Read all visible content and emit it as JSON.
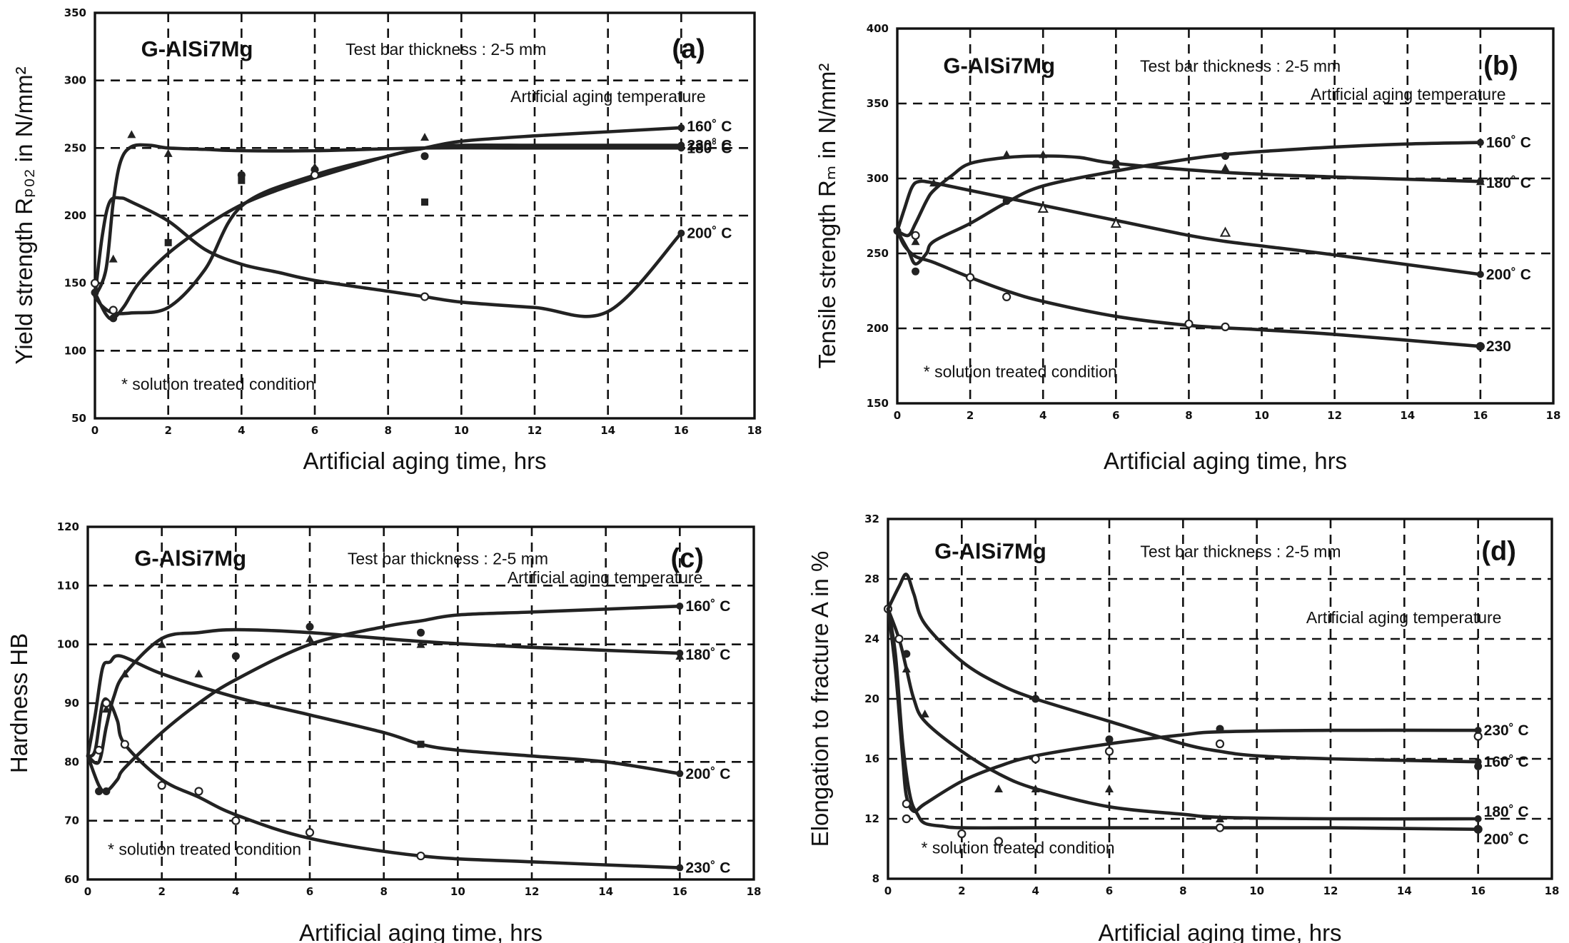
{
  "figure": {
    "x_axis_label": "Artificial aging time, hrs",
    "alloy": "G-AlSi7Mg",
    "test_bar": "Test bar thickness : 2-5 mm",
    "aging_temp_label": "Artificial aging temperature",
    "solution_note": "* solution treated condition"
  },
  "chart_data": [
    {
      "panel": "(a)",
      "type": "line",
      "ylabel": "Yield strength Rₚ₀₂ in N/mm²",
      "xlabel": "Artificial aging time, hrs",
      "xlim": [
        0,
        18
      ],
      "ylim": [
        50,
        350
      ],
      "xticks": [
        "0",
        "2",
        "4",
        "6",
        "8",
        "10",
        "12",
        "14",
        "16",
        "18"
      ],
      "yticks": [
        "50",
        "100",
        "150",
        "200",
        "250",
        "300",
        "350"
      ],
      "grid": true,
      "series": [
        {
          "name": "160˚ C",
          "x": [
            0,
            0.3,
            0.5,
            0.8,
            1.2,
            2,
            3,
            4,
            5,
            6,
            8,
            9,
            10,
            12,
            14,
            16
          ],
          "y": [
            143,
            127,
            124,
            133,
            150,
            172,
            192,
            208,
            219,
            228,
            244,
            250,
            255,
            259,
            262,
            265
          ],
          "markers": {
            "shape": "dot",
            "x": [
              0,
              0.5,
              4,
              6,
              9
            ],
            "y": [
              143,
              124,
              230,
              234,
              244
            ]
          }
        },
        {
          "name": "180˚ C",
          "x": [
            0,
            0.3,
            0.5,
            0.7,
            1,
            1.5,
            2,
            3,
            4,
            6,
            9,
            12,
            16
          ],
          "y": [
            140,
            160,
            210,
            240,
            251,
            252,
            250,
            249,
            248,
            248,
            250,
            250,
            250
          ],
          "markers": {
            "shape": "triangle",
            "x": [
              0.5,
              1,
              2,
              6,
              9
            ],
            "y": [
              168,
              260,
              246,
              236,
              258
            ]
          }
        },
        {
          "name": "200˚ C",
          "x": [
            0,
            0.2,
            0.4,
            0.7,
            1,
            2,
            3,
            4,
            5,
            6,
            8,
            9,
            10,
            12,
            14,
            16
          ],
          "y": [
            140,
            185,
            210,
            213,
            210,
            196,
            175,
            164,
            158,
            152,
            144,
            140,
            136,
            132,
            129,
            187
          ],
          "markers": {
            "shape": "square",
            "x": [
              2,
              4,
              9
            ],
            "y": [
              180,
              226,
              210
            ]
          }
        },
        {
          "name": "230˚ C",
          "x": [
            0,
            0.2,
            0.5,
            1,
            2,
            3,
            4,
            6,
            8,
            9,
            10,
            12,
            14,
            16
          ],
          "y": [
            140,
            133,
            128,
            128,
            132,
            160,
            207,
            230,
            244,
            250,
            252,
            252,
            252,
            252
          ],
          "markers": {
            "shape": "circle",
            "x": [
              0,
              0.5,
              6,
              9
            ],
            "y": [
              150,
              130,
              230,
              140
            ]
          }
        }
      ]
    },
    {
      "panel": "(b)",
      "type": "line",
      "ylabel": "Tensile strength Rₘ in N/mm²",
      "xlabel": "Artificial aging time, hrs",
      "xlim": [
        0,
        18
      ],
      "ylim": [
        150,
        400
      ],
      "xticks": [
        "0",
        "2",
        "4",
        "6",
        "8",
        "10",
        "12",
        "14",
        "16",
        "18"
      ],
      "yticks": [
        "150",
        "200",
        "250",
        "300",
        "350",
        "400"
      ],
      "grid": true,
      "series": [
        {
          "name": "160˚ C",
          "x": [
            0,
            0.3,
            0.5,
            0.8,
            1,
            2,
            3,
            4,
            6,
            8,
            9,
            10,
            12,
            14,
            16
          ],
          "y": [
            265,
            252,
            243,
            250,
            258,
            270,
            284,
            295,
            305,
            313,
            316,
            318,
            321,
            323,
            324
          ],
          "markers": {
            "shape": "dot",
            "x": [
              0,
              0.5,
              3,
              6,
              9
            ],
            "y": [
              265,
              238,
              285,
              310,
              315
            ]
          }
        },
        {
          "name": "180˚ C",
          "x": [
            0,
            0.3,
            0.5,
            0.8,
            1,
            1.5,
            2,
            3,
            4,
            5,
            6,
            9,
            12,
            16
          ],
          "y": [
            265,
            262,
            270,
            285,
            292,
            302,
            310,
            314,
            315,
            314,
            310,
            304,
            301,
            298
          ],
          "markers": {
            "shape": "triangle",
            "x": [
              0.5,
              1,
              3,
              4,
              6,
              9,
              16
            ],
            "y": [
              258,
              297,
              316,
              316,
              309,
              307,
              298
            ]
          }
        },
        {
          "name": "200˚ C",
          "x": [
            0,
            0.2,
            0.4,
            0.6,
            1,
            2,
            4,
            6,
            8,
            9,
            10,
            12,
            16
          ],
          "y": [
            265,
            280,
            294,
            298,
            297,
            292,
            282,
            272,
            262,
            258,
            255,
            249,
            236
          ],
          "markers": {
            "shape": "triangle-open",
            "x": [
              4,
              6,
              9
            ],
            "y": [
              280,
              270,
              264
            ]
          }
        },
        {
          "name": "230",
          "x": [
            0,
            0.2,
            0.5,
            1,
            2,
            3,
            4,
            6,
            8,
            10,
            12,
            16
          ],
          "y": [
            265,
            255,
            248,
            244,
            234,
            225,
            218,
            208,
            202,
            199,
            196,
            188
          ],
          "markers": {
            "shape": "circle",
            "x": [
              0.5,
              2,
              3,
              8,
              9,
              16
            ],
            "y": [
              262,
              234,
              221,
              203,
              201,
              188
            ]
          }
        }
      ]
    },
    {
      "panel": "(c)",
      "type": "line",
      "ylabel": "Hardness HB",
      "xlabel": "Artificial aging time, hrs",
      "xlim": [
        0,
        18
      ],
      "ylim": [
        60,
        120
      ],
      "xticks": [
        "0",
        "2",
        "4",
        "6",
        "8",
        "10",
        "12",
        "14",
        "16",
        "18"
      ],
      "yticks": [
        "60",
        "70",
        "80",
        "90",
        "100",
        "110",
        "120"
      ],
      "grid": true,
      "series": [
        {
          "name": "160˚ C",
          "x": [
            0,
            0.3,
            0.5,
            0.8,
            1,
            2,
            3,
            4,
            6,
            8,
            9,
            10,
            12,
            14,
            16
          ],
          "y": [
            81,
            76,
            75,
            77,
            79,
            85,
            90,
            94,
            100,
            103,
            104,
            105,
            105.5,
            106,
            106.5
          ],
          "markers": {
            "shape": "dot",
            "x": [
              0.3,
              0.5,
              4,
              6,
              9
            ],
            "y": [
              75,
              75,
              98,
              103,
              102
            ]
          }
        },
        {
          "name": "180˚ C",
          "x": [
            0,
            0.3,
            0.5,
            0.7,
            1,
            2,
            3,
            4,
            6,
            9,
            12,
            16
          ],
          "y": [
            81,
            80,
            86,
            91,
            95,
            101,
            102,
            102.5,
            102,
            100.5,
            99.5,
            98.5
          ],
          "markers": {
            "shape": "triangle",
            "x": [
              0.5,
              1,
              2,
              3,
              6,
              9,
              16
            ],
            "y": [
              89,
              95,
              100,
              95,
              101,
              100,
              98
            ]
          }
        },
        {
          "name": "200˚ C",
          "x": [
            0,
            0.2,
            0.4,
            0.6,
            0.9,
            2,
            4,
            6,
            8,
            9,
            10,
            12,
            14,
            16
          ],
          "y": [
            81,
            88,
            96,
            97,
            98,
            95,
            91,
            88,
            85,
            83,
            82,
            81,
            80,
            78
          ],
          "markers": {
            "shape": "square",
            "x": [
              9
            ],
            "y": [
              83
            ]
          }
        },
        {
          "name": "230˚ C",
          "x": [
            0,
            0.2,
            0.4,
            0.6,
            0.8,
            1,
            2,
            3,
            4,
            6,
            9,
            12,
            16
          ],
          "y": [
            81,
            82,
            90,
            90,
            87,
            83,
            77,
            74,
            71,
            67,
            64,
            63,
            62
          ],
          "markers": {
            "shape": "circle",
            "x": [
              0.3,
              0.5,
              1,
              2,
              3,
              4,
              6,
              9
            ],
            "y": [
              82,
              90,
              83,
              76,
              75,
              70,
              68,
              64
            ]
          }
        }
      ]
    },
    {
      "panel": "(d)",
      "type": "line",
      "ylabel": "Elongation to fracture A in %",
      "xlabel": "Artificial aging time, hrs",
      "xlim": [
        0,
        18
      ],
      "ylim": [
        8,
        32
      ],
      "xticks": [
        "0",
        "2",
        "4",
        "6",
        "8",
        "10",
        "12",
        "14",
        "16",
        "18"
      ],
      "yticks": [
        "8",
        "12",
        "16",
        "20",
        "24",
        "28",
        "32"
      ],
      "grid": true,
      "series": [
        {
          "name": "230˚ C",
          "x": [
            0,
            0.2,
            0.4,
            0.5,
            0.7,
            1,
            2,
            3,
            4,
            6,
            8,
            9,
            12,
            16
          ],
          "y": [
            26,
            22,
            16,
            13.5,
            12.5,
            13,
            14.5,
            15.5,
            16.2,
            17,
            17.6,
            17.8,
            17.9,
            17.9
          ],
          "markers": {
            "shape": "circle",
            "x": [
              0,
              0.5,
              4,
              6,
              9,
              16
            ],
            "y": [
              26,
              13,
              16,
              16.5,
              17,
              17.5
            ]
          }
        },
        {
          "name": "160˚ C",
          "x": [
            0,
            0.3,
            0.5,
            0.7,
            1,
            2,
            3,
            4,
            6,
            8,
            9,
            10,
            12,
            16
          ],
          "y": [
            26,
            27.5,
            28.3,
            27,
            25,
            22.5,
            21,
            20,
            18.5,
            17,
            16.5,
            16.2,
            16,
            15.8
          ],
          "markers": {
            "shape": "dot",
            "x": [
              0.3,
              0.5,
              4,
              6,
              9,
              16
            ],
            "y": [
              24,
              23,
              20,
              17.3,
              18,
              15.5
            ]
          }
        },
        {
          "name": "180˚ C",
          "x": [
            0,
            0.3,
            0.5,
            0.7,
            1,
            2,
            3,
            4,
            6,
            8,
            9,
            12,
            16
          ],
          "y": [
            26,
            24,
            22,
            20,
            18.5,
            16.5,
            15,
            14,
            12.8,
            12.3,
            12.1,
            12,
            12
          ],
          "markers": {
            "shape": "triangle",
            "x": [
              0.5,
              1,
              3,
              4,
              6,
              9
            ],
            "y": [
              22,
              19,
              14,
              14,
              14,
              12
            ]
          }
        },
        {
          "name": "200˚ C",
          "x": [
            0,
            0.2,
            0.4,
            0.6,
            0.8,
            1,
            1.5,
            2,
            4,
            6,
            9,
            12,
            16
          ],
          "y": [
            26,
            23,
            17,
            13.5,
            12.3,
            11.7,
            11.5,
            11.4,
            11.4,
            11.4,
            11.4,
            11.4,
            11.3
          ],
          "markers": {
            "shape": "circle",
            "x": [
              0.3,
              0.5,
              2,
              3,
              9,
              16
            ],
            "y": [
              24,
              12,
              11,
              10.5,
              11.4,
              11.3
            ]
          }
        }
      ]
    }
  ]
}
